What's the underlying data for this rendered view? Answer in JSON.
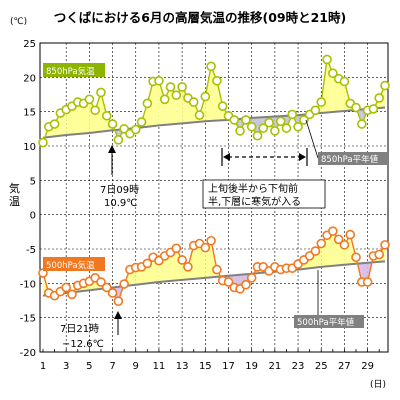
{
  "chart_data": {
    "type": "line",
    "title": "つくばにおける6月の高層気温の推移(09時と21時)",
    "y_unit": "(℃)",
    "ylabel": "気温",
    "x_unit": "(日)",
    "ylim": [
      -20,
      25
    ],
    "y_ticks": [
      -20,
      -15,
      -10,
      -5,
      0,
      5,
      10,
      15,
      20,
      25
    ],
    "x_ticks": [
      1,
      3,
      5,
      7,
      9,
      11,
      13,
      15,
      17,
      19,
      21,
      23,
      25,
      27,
      29
    ],
    "xlim": [
      1,
      30.5
    ],
    "grid": true,
    "series": [
      {
        "name": "850hPa気温",
        "color": "#a8c000",
        "x": [
          1,
          1.5,
          2,
          2.5,
          3,
          3.5,
          4,
          4.5,
          5,
          5.5,
          6,
          6.5,
          7,
          7.5,
          8,
          8.5,
          9,
          9.5,
          10,
          10.5,
          11,
          11.5,
          12,
          12.5,
          13,
          13.5,
          14,
          14.5,
          15,
          15.5,
          16,
          16.5,
          17,
          17.5,
          18,
          18.5,
          19,
          19.5,
          20,
          20.5,
          21,
          21.5,
          22,
          22.5,
          23,
          23.5,
          24,
          24.5,
          25,
          25.5,
          26,
          26.5,
          27,
          27.5,
          28,
          28.5,
          29,
          29.5,
          30,
          30.5
        ],
        "values": [
          10.5,
          12.8,
          13.2,
          14.8,
          15.3,
          15.8,
          16.4,
          16.2,
          16.8,
          15.2,
          17.8,
          14.4,
          13.2,
          10.9,
          12.5,
          11.8,
          12.4,
          13.5,
          16.2,
          19.4,
          19.5,
          16.8,
          18.6,
          17.4,
          18.6,
          17.0,
          16.4,
          14.5,
          17.2,
          21.6,
          19.5,
          15.8,
          14.4,
          13.8,
          12.2,
          13.8,
          12.8,
          11.5,
          12.6,
          13.4,
          12.2,
          13.6,
          12.6,
          14.6,
          12.8,
          13.8,
          14.6,
          15.2,
          16.4,
          22.6,
          20.6,
          19.8,
          19.4,
          16.2,
          15.6,
          13.2,
          15.2,
          15.4,
          17.0,
          18.8
        ]
      },
      {
        "name": "850hPa平年値",
        "color": "#808080",
        "x": [
          1,
          3,
          5,
          7,
          9,
          11,
          13,
          15,
          17,
          19,
          21,
          23,
          25,
          27,
          29,
          30.5
        ],
        "values": [
          11.2,
          11.6,
          11.9,
          12.3,
          12.6,
          13.0,
          13.3,
          13.6,
          13.8,
          14.1,
          14.3,
          14.5,
          14.8,
          15.1,
          15.4,
          15.6
        ]
      },
      {
        "name": "500hPa気温",
        "color": "#f07820",
        "x": [
          1,
          1.5,
          2,
          2.5,
          3,
          3.5,
          4,
          4.5,
          5,
          5.5,
          6,
          6.5,
          7,
          7.5,
          8,
          8.5,
          9,
          9.5,
          10,
          10.5,
          11,
          11.5,
          12,
          12.5,
          13,
          13.5,
          14,
          14.5,
          15,
          15.5,
          16,
          16.5,
          17,
          17.5,
          18,
          18.5,
          19,
          19.5,
          20,
          20.5,
          21,
          21.5,
          22,
          22.5,
          23,
          23.5,
          24,
          24.5,
          25,
          25.5,
          26,
          26.5,
          27,
          27.5,
          28,
          28.5,
          29,
          29.5,
          30,
          30.5
        ],
        "values": [
          -8.5,
          -11.4,
          -11.8,
          -11.2,
          -10.6,
          -11.6,
          -10.3,
          -10.0,
          -9.7,
          -9.2,
          -9.8,
          -10.6,
          -11.4,
          -12.6,
          -10.1,
          -8.0,
          -7.7,
          -7.6,
          -7.1,
          -6.2,
          -6.7,
          -6.0,
          -5.5,
          -4.9,
          -6.6,
          -7.6,
          -4.5,
          -4.2,
          -4.8,
          -3.8,
          -8.0,
          -9.6,
          -9.8,
          -10.6,
          -10.8,
          -10.2,
          -9.2,
          -7.6,
          -7.6,
          -8.2,
          -7.6,
          -8.0,
          -7.8,
          -7.8,
          -7.2,
          -6.6,
          -6.0,
          -5.3,
          -4.2,
          -3.0,
          -2.4,
          -3.6,
          -4.4,
          -2.9,
          -6.2,
          -9.8,
          -9.8,
          -6.0,
          -5.8,
          -4.4
        ]
      },
      {
        "name": "500hPa平年値",
        "color": "#808080",
        "x": [
          1,
          3,
          5,
          7,
          9,
          11,
          13,
          15,
          17,
          19,
          21,
          23,
          25,
          27,
          29,
          30.5
        ],
        "values": [
          -11.8,
          -11.4,
          -11.0,
          -10.6,
          -10.2,
          -9.8,
          -9.5,
          -9.2,
          -8.9,
          -8.6,
          -8.3,
          -8.0,
          -7.6,
          -7.3,
          -7.0,
          -6.8
        ]
      }
    ],
    "annotations": {
      "min850_label_1": "7日09時",
      "min850_label_2": "10.9℃",
      "min500_label_1": "7日21時",
      "min500_label_2": "−12.6℃",
      "cold_label_1": "上旬後半から下旬前",
      "cold_label_2": "半,下層に寒気が入る",
      "normal850_label": "850hPa平年値",
      "normal500_label": "500hPa平年値",
      "legend850": "850hPa気温",
      "legend500": "500hPa気温"
    }
  }
}
